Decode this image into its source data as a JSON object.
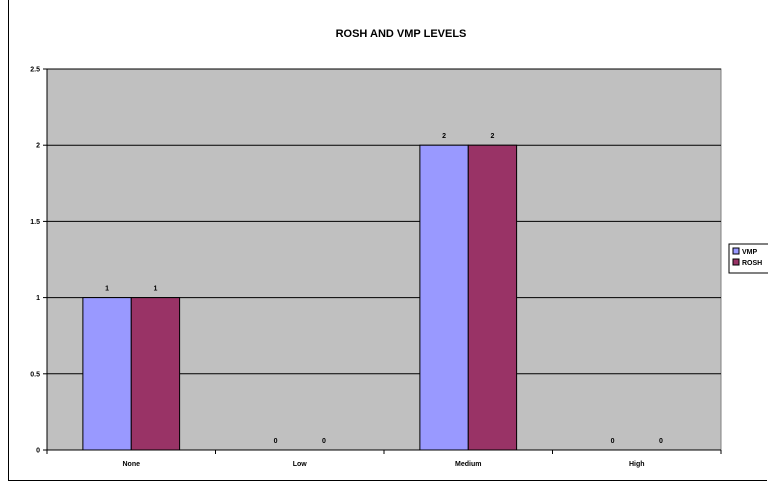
{
  "chart_data": {
    "type": "bar",
    "title": "ROSH AND VMP LEVELS",
    "categories": [
      "None",
      "Low",
      "Medium",
      "High"
    ],
    "series": [
      {
        "name": "VMP",
        "values": [
          1,
          0,
          2,
          0
        ],
        "color": "#9999ff"
      },
      {
        "name": "ROSH",
        "values": [
          1,
          0,
          2,
          0
        ],
        "color": "#993366"
      }
    ],
    "ylim": [
      0,
      2.5
    ],
    "yticks": [
      "0",
      "0.5",
      "1",
      "1.5",
      "2",
      "2.5"
    ],
    "grid": true,
    "plot_background": "#c0c0c0",
    "legend_position": "right"
  }
}
